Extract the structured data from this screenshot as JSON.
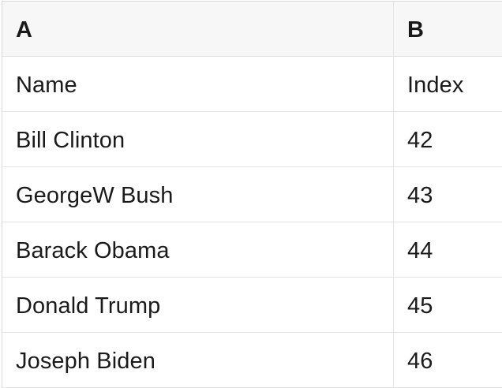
{
  "colors": {
    "page_bg": "#ffffff",
    "header_bg": "#f7f7f7",
    "grid_border": "#e4e4e4",
    "outer_border": "#d9d9d9",
    "text": "#1a1a1a"
  },
  "table": {
    "column_headers": [
      "A",
      "B"
    ],
    "rows": [
      [
        "Name",
        "Index"
      ],
      [
        "Bill Clinton",
        "42"
      ],
      [
        "GeorgeW Bush",
        "43"
      ],
      [
        "Barack Obama",
        "44"
      ],
      [
        "Donald Trump",
        "45"
      ],
      [
        "Joseph Biden",
        "46"
      ]
    ]
  }
}
